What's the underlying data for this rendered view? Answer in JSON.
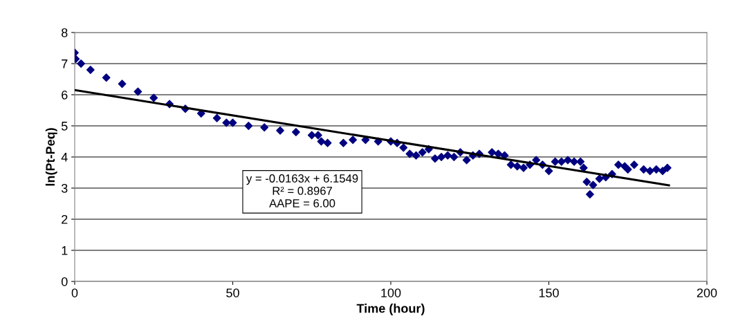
{
  "chart_data": {
    "type": "scatter",
    "xlabel": "Time (hour)",
    "ylabel": "ln(Pt-Peq)",
    "xlim": [
      0,
      200
    ],
    "xticks": [
      0,
      50,
      100,
      150,
      200
    ],
    "ylim": [
      0,
      8
    ],
    "yticks": [
      0,
      1,
      2,
      3,
      4,
      5,
      6,
      7,
      8
    ],
    "grid": "y",
    "marker": "diamond",
    "series": [
      {
        "color": "#000080",
        "x": [
          0,
          0.3,
          2,
          5,
          10,
          15,
          20,
          25,
          30,
          35,
          40,
          45,
          48,
          50,
          55,
          60,
          65,
          70,
          75,
          77,
          78,
          80,
          85,
          88,
          92,
          96,
          100,
          102,
          104,
          106,
          108,
          110,
          112,
          114,
          116,
          118,
          120,
          122,
          124,
          126,
          128,
          132,
          134,
          136,
          138,
          140,
          142,
          144,
          146,
          148,
          150,
          152,
          154,
          156,
          158,
          160,
          161,
          162,
          163,
          164,
          166,
          168,
          170,
          172,
          174,
          175,
          177,
          180,
          182,
          184,
          186,
          187.5
        ],
        "values": [
          7.35,
          7.15,
          7.0,
          6.8,
          6.55,
          6.35,
          6.1,
          5.9,
          5.7,
          5.55,
          5.4,
          5.25,
          5.1,
          5.1,
          5.0,
          4.95,
          4.85,
          4.8,
          4.7,
          4.7,
          4.5,
          4.45,
          4.45,
          4.55,
          4.55,
          4.5,
          4.5,
          4.45,
          4.3,
          4.1,
          4.05,
          4.15,
          4.25,
          3.95,
          4.0,
          4.05,
          4.0,
          4.15,
          3.9,
          4.05,
          4.1,
          4.15,
          4.1,
          4.05,
          3.75,
          3.7,
          3.65,
          3.75,
          3.9,
          3.75,
          3.55,
          3.85,
          3.85,
          3.9,
          3.85,
          3.85,
          3.65,
          3.2,
          2.8,
          3.1,
          3.3,
          3.35,
          3.45,
          3.75,
          3.7,
          3.6,
          3.75,
          3.6,
          3.55,
          3.6,
          3.55,
          3.65
        ]
      },
      {
        "type": "line",
        "color": "#000000",
        "marker": "none",
        "x": [
          0,
          188
        ],
        "values": [
          6.15,
          3.09
        ]
      }
    ],
    "annotations": [
      "y = -0.0163x + 6.1549\nR² = 0.8967\nAAPE = 6.00"
    ]
  }
}
